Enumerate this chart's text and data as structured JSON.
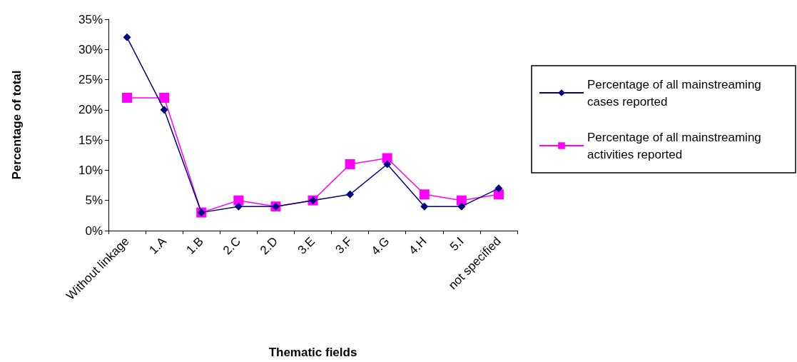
{
  "chart_data": {
    "type": "line",
    "xlabel": "Thematic fields",
    "ylabel": "Percentage of total",
    "categories": [
      "Without linkage",
      "1.A",
      "1.B",
      "2.C",
      "2.D",
      "3.E",
      "3.F",
      "4.G",
      "4.H",
      "5.I",
      "not specified"
    ],
    "series": [
      {
        "name": "Percentage of all mainstreaming cases reported",
        "color": "#000080",
        "marker": "diamond",
        "values": [
          32,
          20,
          3,
          4,
          4,
          5,
          6,
          11,
          4,
          4,
          7
        ]
      },
      {
        "name": "Percentage of all mainstreaming activities reported",
        "color": "#ff00ff",
        "marker": "square",
        "values": [
          22,
          22,
          3,
          5,
          4,
          5,
          11,
          12,
          6,
          5,
          6
        ]
      }
    ],
    "ylim": [
      0,
      35
    ],
    "yticks": [
      {
        "value": 0,
        "label": "0%"
      },
      {
        "value": 5,
        "label": "5%"
      },
      {
        "value": 10,
        "label": "10%"
      },
      {
        "value": 15,
        "label": "15%"
      },
      {
        "value": 20,
        "label": "20%"
      },
      {
        "value": 25,
        "label": "25%"
      },
      {
        "value": 30,
        "label": "30%"
      },
      {
        "value": 35,
        "label": "35%"
      }
    ],
    "grid": false,
    "legend": "right",
    "line_style": "solid"
  }
}
